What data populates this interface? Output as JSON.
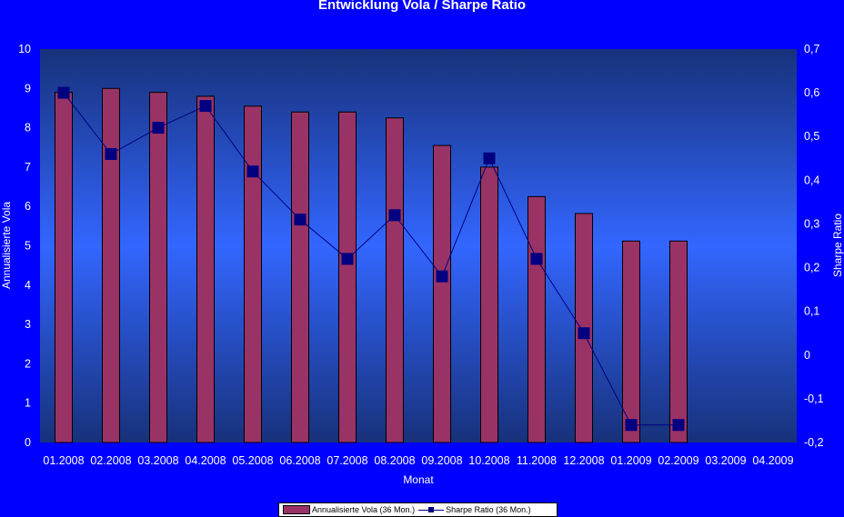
{
  "chart_data": {
    "type": "bar+line",
    "title": "Entwicklung Vola / Sharpe Ratio",
    "xlabel": "Monat",
    "ylabel": "Annualisierte Vola",
    "y2label": "Sharpe Ratio",
    "categories": [
      "01.2008",
      "02.2008",
      "03.2008",
      "04.2008",
      "05.2008",
      "06.2008",
      "07.2008",
      "08.2008",
      "09.2008",
      "10.2008",
      "11.2008",
      "12.2008",
      "01.2009",
      "02.2009",
      "03.2009",
      "04.2009"
    ],
    "series": [
      {
        "name": "Annualisierte Vola (36 Mon.)",
        "type": "bar",
        "axis": "left",
        "color": "#993366",
        "values": [
          8.9,
          9.0,
          8.9,
          8.8,
          8.55,
          8.4,
          8.4,
          8.25,
          7.55,
          7.0,
          6.25,
          5.82,
          5.12,
          5.12,
          null,
          null
        ]
      },
      {
        "name": "Sharpe Ratio (36 Mon.)",
        "type": "line",
        "axis": "right",
        "color": "#000080",
        "values": [
          0.6,
          0.46,
          0.52,
          0.57,
          0.42,
          0.31,
          0.22,
          0.32,
          0.18,
          0.45,
          0.22,
          0.05,
          -0.16,
          -0.16,
          null,
          null
        ]
      }
    ],
    "ylim": [
      0,
      10
    ],
    "yticks": [
      "0",
      "1",
      "2",
      "3",
      "4",
      "5",
      "6",
      "7",
      "8",
      "9",
      "10"
    ],
    "y2lim": [
      -0.2,
      0.7
    ],
    "y2ticks": [
      "-0,2",
      "-0,1",
      "0",
      "0,1",
      "0,2",
      "0,3",
      "0,4",
      "0,5",
      "0,6",
      "0,7"
    ],
    "legend": "bottom"
  }
}
